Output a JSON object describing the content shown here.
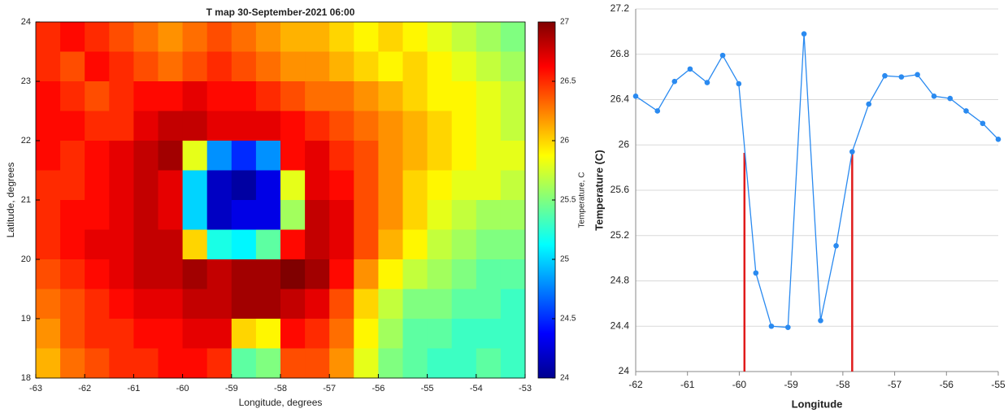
{
  "chart_data": [
    {
      "type": "heatmap",
      "title": "T map 30-September-2021 06:00",
      "xlabel": "Longitude, degrees",
      "ylabel": "Latitude, degrees",
      "colorbar_label": "Temperature, C",
      "colormap": "jet",
      "x": [
        -62.75,
        -62.25,
        -61.75,
        -61.25,
        -60.75,
        -60.25,
        -59.75,
        -59.25,
        -58.75,
        -58.25,
        -57.75,
        -57.25,
        -56.75,
        -56.25,
        -55.75,
        -55.25,
        -54.75,
        -54.25,
        -53.75,
        -53.25
      ],
      "y": [
        23.75,
        23.25,
        22.75,
        22.25,
        21.75,
        21.25,
        20.75,
        20.25,
        19.75,
        19.25,
        18.75,
        18.25
      ],
      "z": [
        [
          26.5,
          26.6,
          26.5,
          26.4,
          26.3,
          26.2,
          26.3,
          26.4,
          26.3,
          26.2,
          26.1,
          26.1,
          26.0,
          25.9,
          26.0,
          25.9,
          25.8,
          25.7,
          25.6,
          25.5
        ],
        [
          26.5,
          26.4,
          26.6,
          26.5,
          26.4,
          26.3,
          26.4,
          26.5,
          26.4,
          26.3,
          26.2,
          26.2,
          26.1,
          26.0,
          25.9,
          26.0,
          25.9,
          25.8,
          25.7,
          25.6
        ],
        [
          26.6,
          26.5,
          26.4,
          26.5,
          26.6,
          26.6,
          26.7,
          26.6,
          26.6,
          26.5,
          26.4,
          26.3,
          26.3,
          26.2,
          26.1,
          26.0,
          25.9,
          25.9,
          25.8,
          25.7
        ],
        [
          26.6,
          26.6,
          26.5,
          26.5,
          26.7,
          26.8,
          26.8,
          26.7,
          26.7,
          26.7,
          26.6,
          26.5,
          26.4,
          26.3,
          26.2,
          26.1,
          26.0,
          25.9,
          25.8,
          25.7
        ],
        [
          26.6,
          26.5,
          26.6,
          26.7,
          26.8,
          26.9,
          25.8,
          24.8,
          24.5,
          24.8,
          26.6,
          26.7,
          26.5,
          26.4,
          26.2,
          26.1,
          26.0,
          25.9,
          25.8,
          25.8
        ],
        [
          26.5,
          26.5,
          26.6,
          26.7,
          26.8,
          26.7,
          25.0,
          24.2,
          24.1,
          24.3,
          25.8,
          26.7,
          26.6,
          26.4,
          26.2,
          26.0,
          25.9,
          25.8,
          25.8,
          25.7
        ],
        [
          26.5,
          26.6,
          26.6,
          26.7,
          26.8,
          26.7,
          25.0,
          24.2,
          24.3,
          24.3,
          25.6,
          26.8,
          26.7,
          26.4,
          26.2,
          26.0,
          25.8,
          25.7,
          25.6,
          25.6
        ],
        [
          26.5,
          26.6,
          26.7,
          26.7,
          26.8,
          26.8,
          26.0,
          25.2,
          25.1,
          25.4,
          26.6,
          26.8,
          26.7,
          26.4,
          26.1,
          25.9,
          25.7,
          25.6,
          25.5,
          25.5
        ],
        [
          26.4,
          26.5,
          26.6,
          26.7,
          26.8,
          26.8,
          26.9,
          26.8,
          26.9,
          26.9,
          27.0,
          26.9,
          26.6,
          26.2,
          25.9,
          25.7,
          25.6,
          25.5,
          25.4,
          25.4
        ],
        [
          26.3,
          26.4,
          26.5,
          26.6,
          26.7,
          26.7,
          26.8,
          26.8,
          26.9,
          26.9,
          26.8,
          26.7,
          26.4,
          26.0,
          25.7,
          25.5,
          25.5,
          25.4,
          25.4,
          25.3
        ],
        [
          26.2,
          26.4,
          26.5,
          26.5,
          26.6,
          26.6,
          26.7,
          26.7,
          26.0,
          25.9,
          26.6,
          26.5,
          26.3,
          25.9,
          25.6,
          25.4,
          25.4,
          25.3,
          25.3,
          25.3
        ],
        [
          26.1,
          26.3,
          26.4,
          26.5,
          26.5,
          26.6,
          26.6,
          26.5,
          25.4,
          25.5,
          26.4,
          26.4,
          26.2,
          25.8,
          25.5,
          25.4,
          25.3,
          25.3,
          25.4,
          25.3
        ]
      ],
      "xlim": [
        -63,
        -53
      ],
      "ylim": [
        18,
        24
      ],
      "zlim": [
        24,
        27
      ],
      "xticks": [
        -63,
        -62,
        -61,
        -60,
        -59,
        -58,
        -57,
        -56,
        -55,
        -54,
        -53
      ],
      "yticks": [
        18,
        19,
        20,
        21,
        22,
        23,
        24
      ],
      "zticks": [
        24,
        24.5,
        25,
        25.5,
        26,
        26.5,
        27
      ]
    },
    {
      "type": "line",
      "xlabel": "Longitude",
      "ylabel": "Temperature (C)",
      "x": [
        -62.0,
        -61.58,
        -61.25,
        -60.95,
        -60.62,
        -60.32,
        -60.01,
        -59.68,
        -59.38,
        -59.06,
        -58.75,
        -58.43,
        -58.13,
        -57.82,
        -57.5,
        -57.19,
        -56.87,
        -56.56,
        -56.24,
        -55.93,
        -55.62,
        -55.3,
        -55.0
      ],
      "series": [
        {
          "color": "#2a8af0",
          "values": [
            26.43,
            26.3,
            26.56,
            26.67,
            26.55,
            26.79,
            26.54,
            24.87,
            24.4,
            24.39,
            26.98,
            24.45,
            25.11,
            25.94,
            26.36,
            26.61,
            26.6,
            26.62,
            26.43,
            26.41,
            26.3,
            26.19,
            26.05
          ]
        }
      ],
      "vlines": {
        "color": "#e01b1b",
        "x": [
          -59.9,
          -57.82
        ],
        "values": [
          25.93,
          25.93
        ]
      },
      "xlim": [
        -62,
        -55
      ],
      "ylim": [
        24,
        27.2
      ],
      "xticks": [
        -62,
        -61,
        -60,
        -59,
        -58,
        -57,
        -56,
        -55
      ],
      "yticks": [
        24,
        24.4,
        24.8,
        25.2,
        25.6,
        26,
        26.4,
        26.8,
        27.2
      ],
      "grid": true
    }
  ]
}
